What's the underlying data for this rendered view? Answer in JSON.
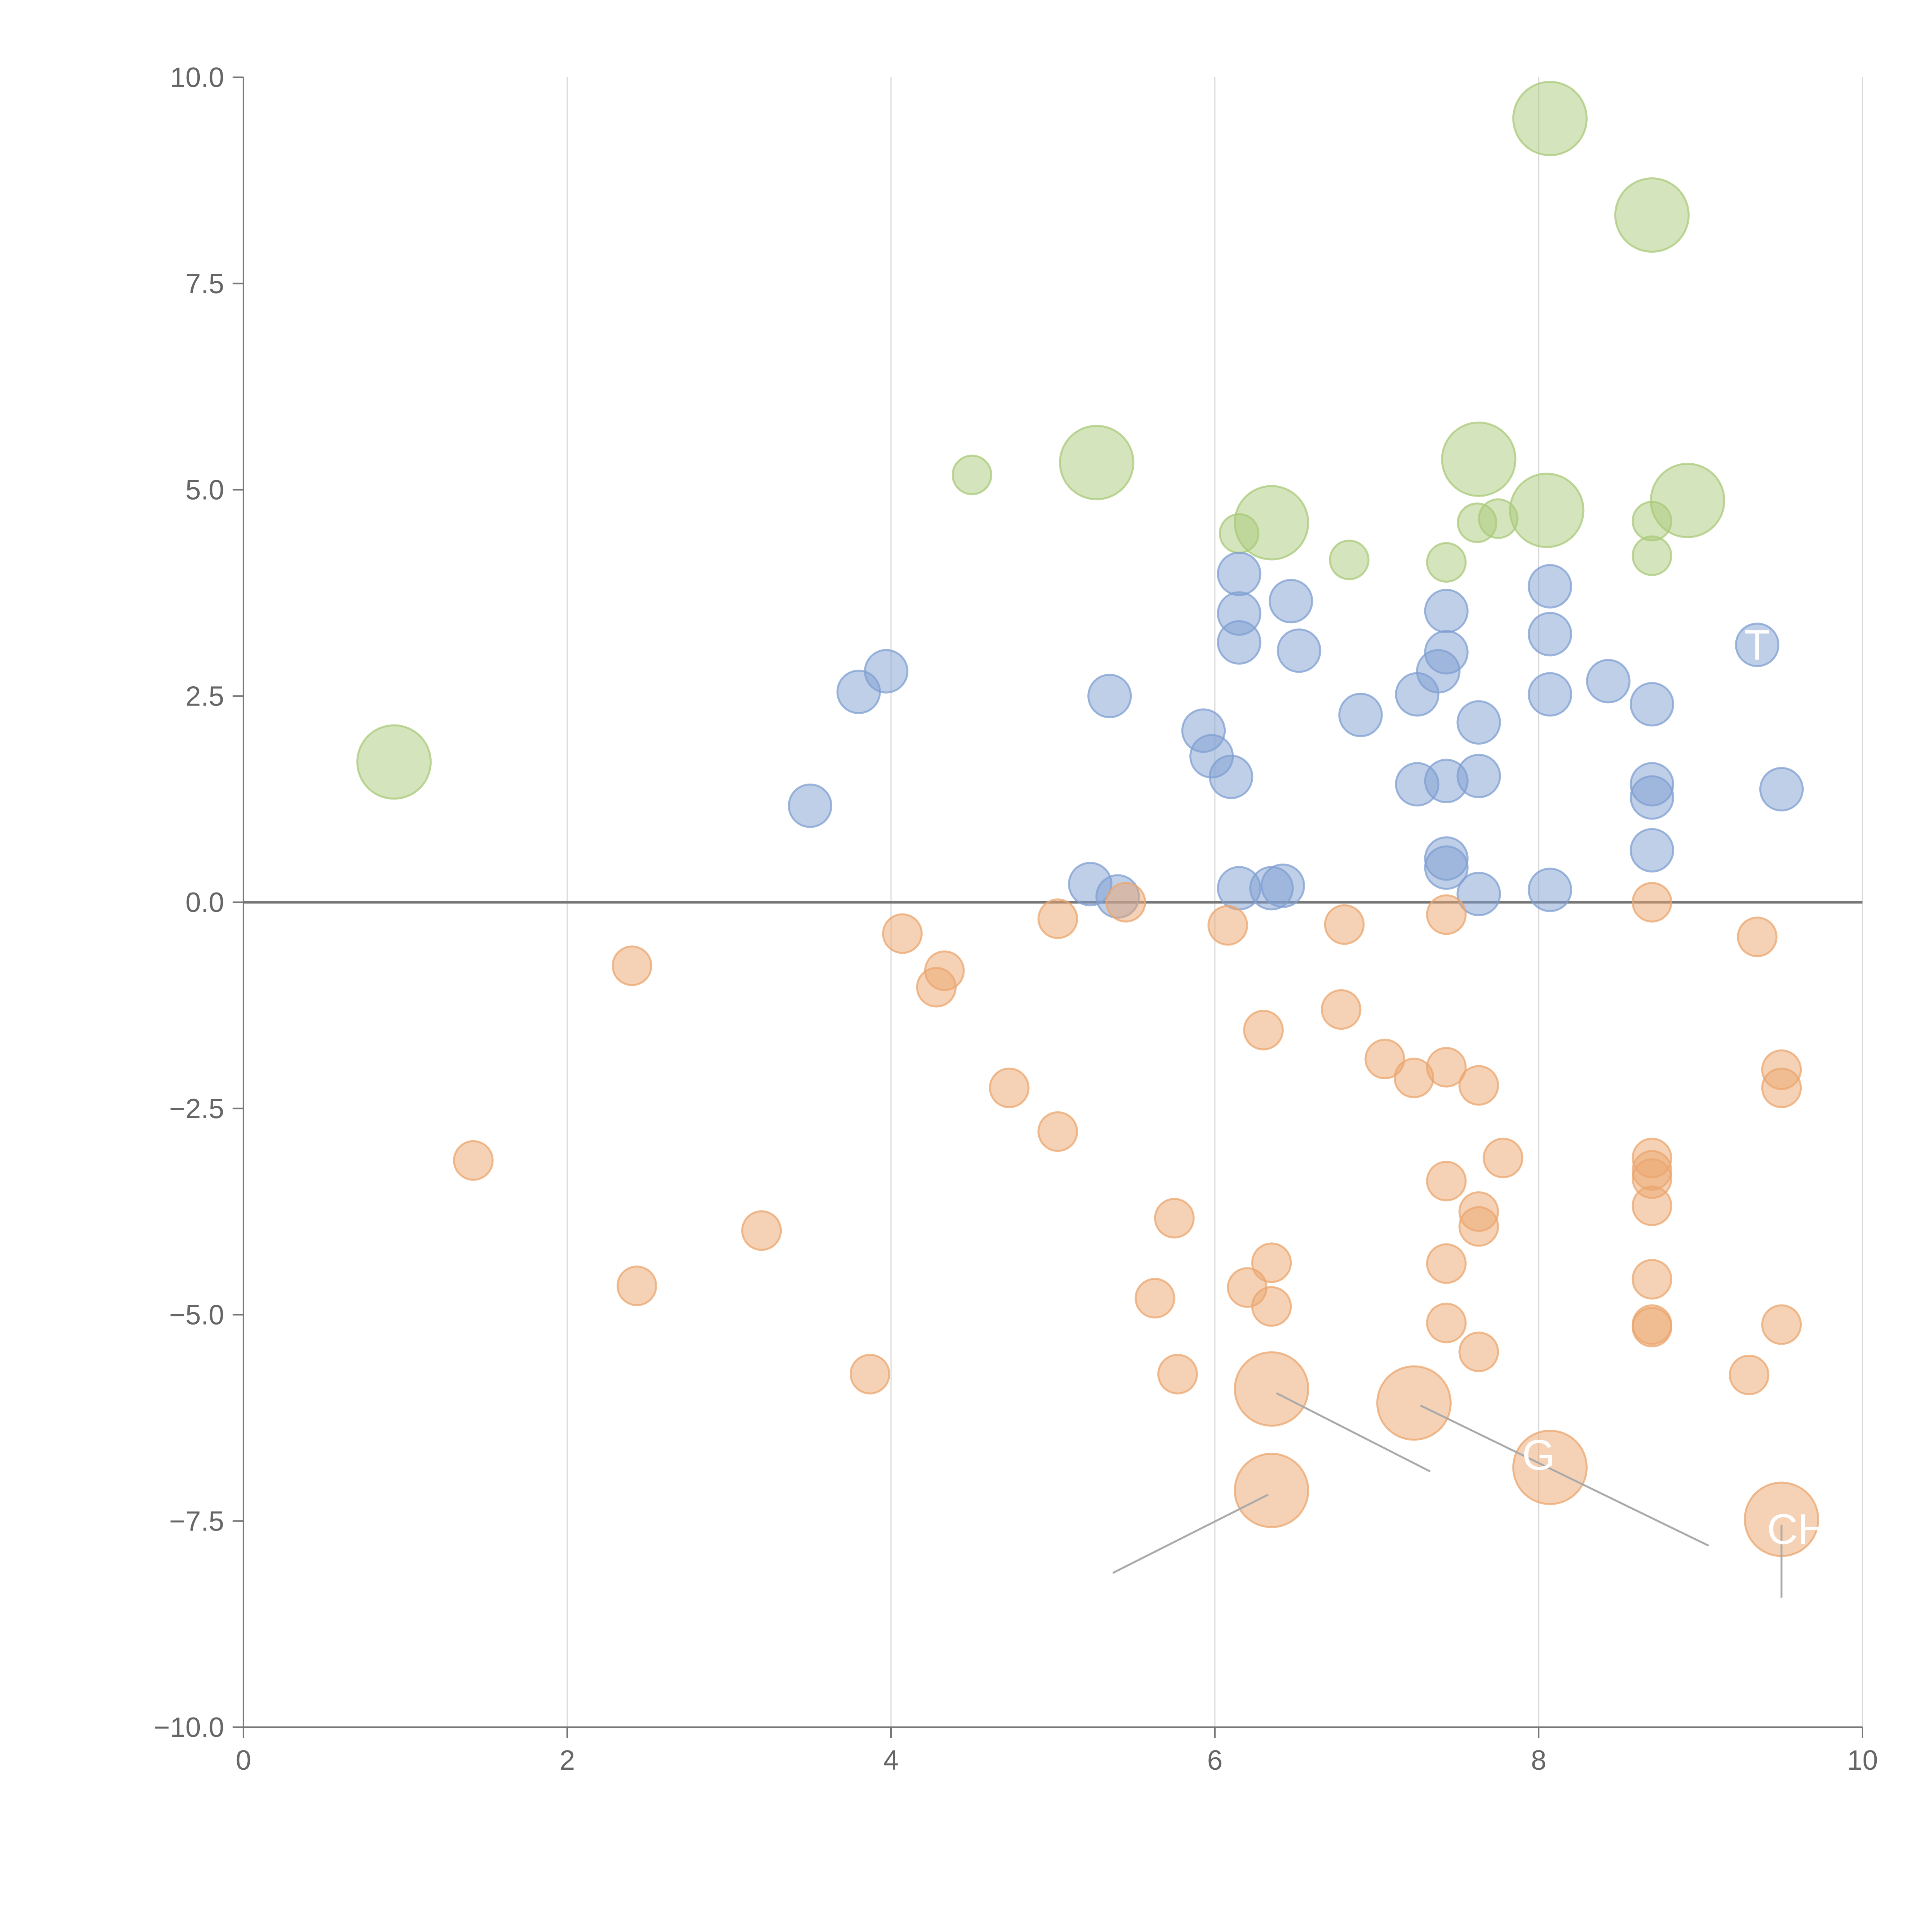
{
  "chart_data": {
    "type": "scatter",
    "xlim": [
      0,
      10
    ],
    "ylim": [
      -10,
      10
    ],
    "x_ticks": [
      0,
      2,
      4,
      6,
      8,
      10
    ],
    "y_ticks": [
      10.0,
      7.5,
      5.0,
      2.5,
      0.0,
      -2.5,
      -5.0,
      -7.5,
      -10.0
    ],
    "x_tick_labels": [
      "0",
      "2",
      "4",
      "6",
      "8",
      "10"
    ],
    "y_tick_labels": [
      "10.0",
      "7.5",
      "5.0",
      "2.5",
      "0.0",
      "−2.5",
      "−5.0",
      "−7.5",
      "−10.0"
    ],
    "grid": "vertical",
    "series": [
      {
        "name": "green",
        "color": "#a9c97a",
        "points": [
          {
            "x": 8.07,
            "y": 9.5,
            "size": "large"
          },
          {
            "x": 8.7,
            "y": 8.33,
            "size": "large"
          },
          {
            "x": 4.5,
            "y": 5.18,
            "size": "small"
          },
          {
            "x": 5.27,
            "y": 5.33,
            "size": "large"
          },
          {
            "x": 7.63,
            "y": 5.37,
            "size": "large"
          },
          {
            "x": 6.35,
            "y": 4.6,
            "size": "large"
          },
          {
            "x": 8.92,
            "y": 4.87,
            "size": "large"
          },
          {
            "x": 8.05,
            "y": 4.75,
            "size": "large"
          },
          {
            "x": 0.93,
            "y": 1.7,
            "size": "large"
          },
          {
            "x": 6.15,
            "y": 4.47,
            "size": "small"
          },
          {
            "x": 6.83,
            "y": 4.15,
            "size": "small"
          },
          {
            "x": 7.43,
            "y": 4.12,
            "size": "small"
          },
          {
            "x": 7.62,
            "y": 4.6,
            "size": "small"
          },
          {
            "x": 7.75,
            "y": 4.65,
            "size": "small"
          },
          {
            "x": 8.7,
            "y": 4.62,
            "size": "small"
          },
          {
            "x": 8.7,
            "y": 4.2,
            "size": "small"
          }
        ]
      },
      {
        "name": "blue",
        "color": "#7f9fd2",
        "points": [
          {
            "x": 6.15,
            "y": 3.98
          },
          {
            "x": 6.15,
            "y": 3.5
          },
          {
            "x": 6.15,
            "y": 3.15
          },
          {
            "x": 6.47,
            "y": 3.65
          },
          {
            "x": 6.52,
            "y": 3.05
          },
          {
            "x": 8.07,
            "y": 3.83
          },
          {
            "x": 8.07,
            "y": 3.25
          },
          {
            "x": 7.43,
            "y": 3.53
          },
          {
            "x": 7.43,
            "y": 3.03
          },
          {
            "x": 7.38,
            "y": 2.8
          },
          {
            "x": 7.25,
            "y": 2.52
          },
          {
            "x": 6.9,
            "y": 2.27
          },
          {
            "x": 7.63,
            "y": 2.18
          },
          {
            "x": 8.07,
            "y": 2.52
          },
          {
            "x": 8.43,
            "y": 2.68
          },
          {
            "x": 8.7,
            "y": 2.4
          },
          {
            "x": 9.35,
            "y": 3.12
          },
          {
            "x": 3.8,
            "y": 2.55
          },
          {
            "x": 3.97,
            "y": 2.8
          },
          {
            "x": 5.35,
            "y": 2.5
          },
          {
            "x": 5.93,
            "y": 2.08
          },
          {
            "x": 5.98,
            "y": 1.77
          },
          {
            "x": 6.1,
            "y": 1.52
          },
          {
            "x": 3.5,
            "y": 1.17
          },
          {
            "x": 7.25,
            "y": 1.43
          },
          {
            "x": 7.43,
            "y": 1.47
          },
          {
            "x": 7.63,
            "y": 1.53
          },
          {
            "x": 8.7,
            "y": 1.43
          },
          {
            "x": 8.7,
            "y": 1.27
          },
          {
            "x": 9.5,
            "y": 1.37
          },
          {
            "x": 8.7,
            "y": 0.63
          },
          {
            "x": 7.43,
            "y": 0.53
          },
          {
            "x": 7.43,
            "y": 0.42
          },
          {
            "x": 5.23,
            "y": 0.22
          },
          {
            "x": 5.4,
            "y": 0.07
          },
          {
            "x": 6.15,
            "y": 0.17
          },
          {
            "x": 6.35,
            "y": 0.17
          },
          {
            "x": 6.42,
            "y": 0.2
          },
          {
            "x": 7.63,
            "y": 0.1
          },
          {
            "x": 8.07,
            "y": 0.15
          }
        ]
      },
      {
        "name": "orange",
        "color": "#eba66e",
        "points": [
          {
            "x": 5.45,
            "y": 0.0,
            "size": "small"
          },
          {
            "x": 8.7,
            "y": 0.0,
            "size": "small"
          },
          {
            "x": 4.07,
            "y": -0.38,
            "size": "small"
          },
          {
            "x": 5.03,
            "y": -0.2,
            "size": "small"
          },
          {
            "x": 6.08,
            "y": -0.28,
            "size": "small"
          },
          {
            "x": 6.8,
            "y": -0.27,
            "size": "small"
          },
          {
            "x": 7.43,
            "y": -0.15,
            "size": "small"
          },
          {
            "x": 9.35,
            "y": -0.42,
            "size": "small"
          },
          {
            "x": 2.4,
            "y": -0.77,
            "size": "small"
          },
          {
            "x": 4.33,
            "y": -0.83,
            "size": "small"
          },
          {
            "x": 4.28,
            "y": -1.03,
            "size": "small"
          },
          {
            "x": 6.3,
            "y": -1.55,
            "size": "small"
          },
          {
            "x": 6.78,
            "y": -1.3,
            "size": "small"
          },
          {
            "x": 7.05,
            "y": -1.9,
            "size": "small"
          },
          {
            "x": 7.23,
            "y": -2.13,
            "size": "small"
          },
          {
            "x": 7.43,
            "y": -2.0,
            "size": "small"
          },
          {
            "x": 7.63,
            "y": -2.22,
            "size": "small"
          },
          {
            "x": 9.5,
            "y": -2.03,
            "size": "small"
          },
          {
            "x": 9.5,
            "y": -2.25,
            "size": "small"
          },
          {
            "x": 4.73,
            "y": -2.25,
            "size": "small"
          },
          {
            "x": 5.03,
            "y": -2.78,
            "size": "small"
          },
          {
            "x": 1.42,
            "y": -3.13,
            "size": "small"
          },
          {
            "x": 7.78,
            "y": -3.1,
            "size": "small"
          },
          {
            "x": 8.7,
            "y": -3.1,
            "size": "small"
          },
          {
            "x": 8.7,
            "y": -3.25,
            "size": "small"
          },
          {
            "x": 8.7,
            "y": -3.35,
            "size": "small"
          },
          {
            "x": 7.43,
            "y": -3.38,
            "size": "small"
          },
          {
            "x": 8.7,
            "y": -3.68,
            "size": "small"
          },
          {
            "x": 7.63,
            "y": -3.75,
            "size": "small"
          },
          {
            "x": 7.63,
            "y": -3.93,
            "size": "small"
          },
          {
            "x": 3.2,
            "y": -3.98,
            "size": "small"
          },
          {
            "x": 5.75,
            "y": -3.83,
            "size": "small"
          },
          {
            "x": 6.35,
            "y": -4.37,
            "size": "small"
          },
          {
            "x": 7.43,
            "y": -4.38,
            "size": "small"
          },
          {
            "x": 8.7,
            "y": -4.57,
            "size": "small"
          },
          {
            "x": 2.43,
            "y": -4.65,
            "size": "small"
          },
          {
            "x": 6.2,
            "y": -4.67,
            "size": "small"
          },
          {
            "x": 5.63,
            "y": -4.8,
            "size": "small"
          },
          {
            "x": 6.35,
            "y": -4.9,
            "size": "small"
          },
          {
            "x": 7.43,
            "y": -5.1,
            "size": "small"
          },
          {
            "x": 8.7,
            "y": -5.12,
            "size": "small"
          },
          {
            "x": 8.7,
            "y": -5.15,
            "size": "small"
          },
          {
            "x": 9.5,
            "y": -5.12,
            "size": "small"
          },
          {
            "x": 7.63,
            "y": -5.45,
            "size": "small"
          },
          {
            "x": 3.87,
            "y": -5.72,
            "size": "small"
          },
          {
            "x": 5.77,
            "y": -5.72,
            "size": "small"
          },
          {
            "x": 9.3,
            "y": -5.73,
            "size": "small"
          },
          {
            "x": 6.35,
            "y": -5.9,
            "size": "large"
          },
          {
            "x": 7.23,
            "y": -6.07,
            "size": "large"
          },
          {
            "x": 8.07,
            "y": -6.85,
            "size": "large"
          },
          {
            "x": 6.35,
            "y": -7.13,
            "size": "large"
          },
          {
            "x": 9.5,
            "y": -7.48,
            "size": "large"
          }
        ]
      }
    ],
    "point_labels": [
      {
        "text": "T",
        "x": 9.35,
        "y": 3.12
      },
      {
        "text": "G",
        "x": 8.0,
        "y": -6.7
      },
      {
        "text": "CH",
        "x": 9.6,
        "y": -7.6
      }
    ],
    "leader_lines": [
      {
        "from": [
          6.38,
          -5.95
        ],
        "to": [
          7.33,
          -6.9
        ]
      },
      {
        "from": [
          7.27,
          -6.1
        ],
        "to": [
          9.05,
          -7.8
        ]
      },
      {
        "from": [
          6.33,
          -7.18
        ],
        "to": [
          5.37,
          -8.13
        ]
      },
      {
        "from": [
          9.5,
          -7.55
        ],
        "to": [
          9.5,
          -8.43
        ]
      }
    ]
  }
}
